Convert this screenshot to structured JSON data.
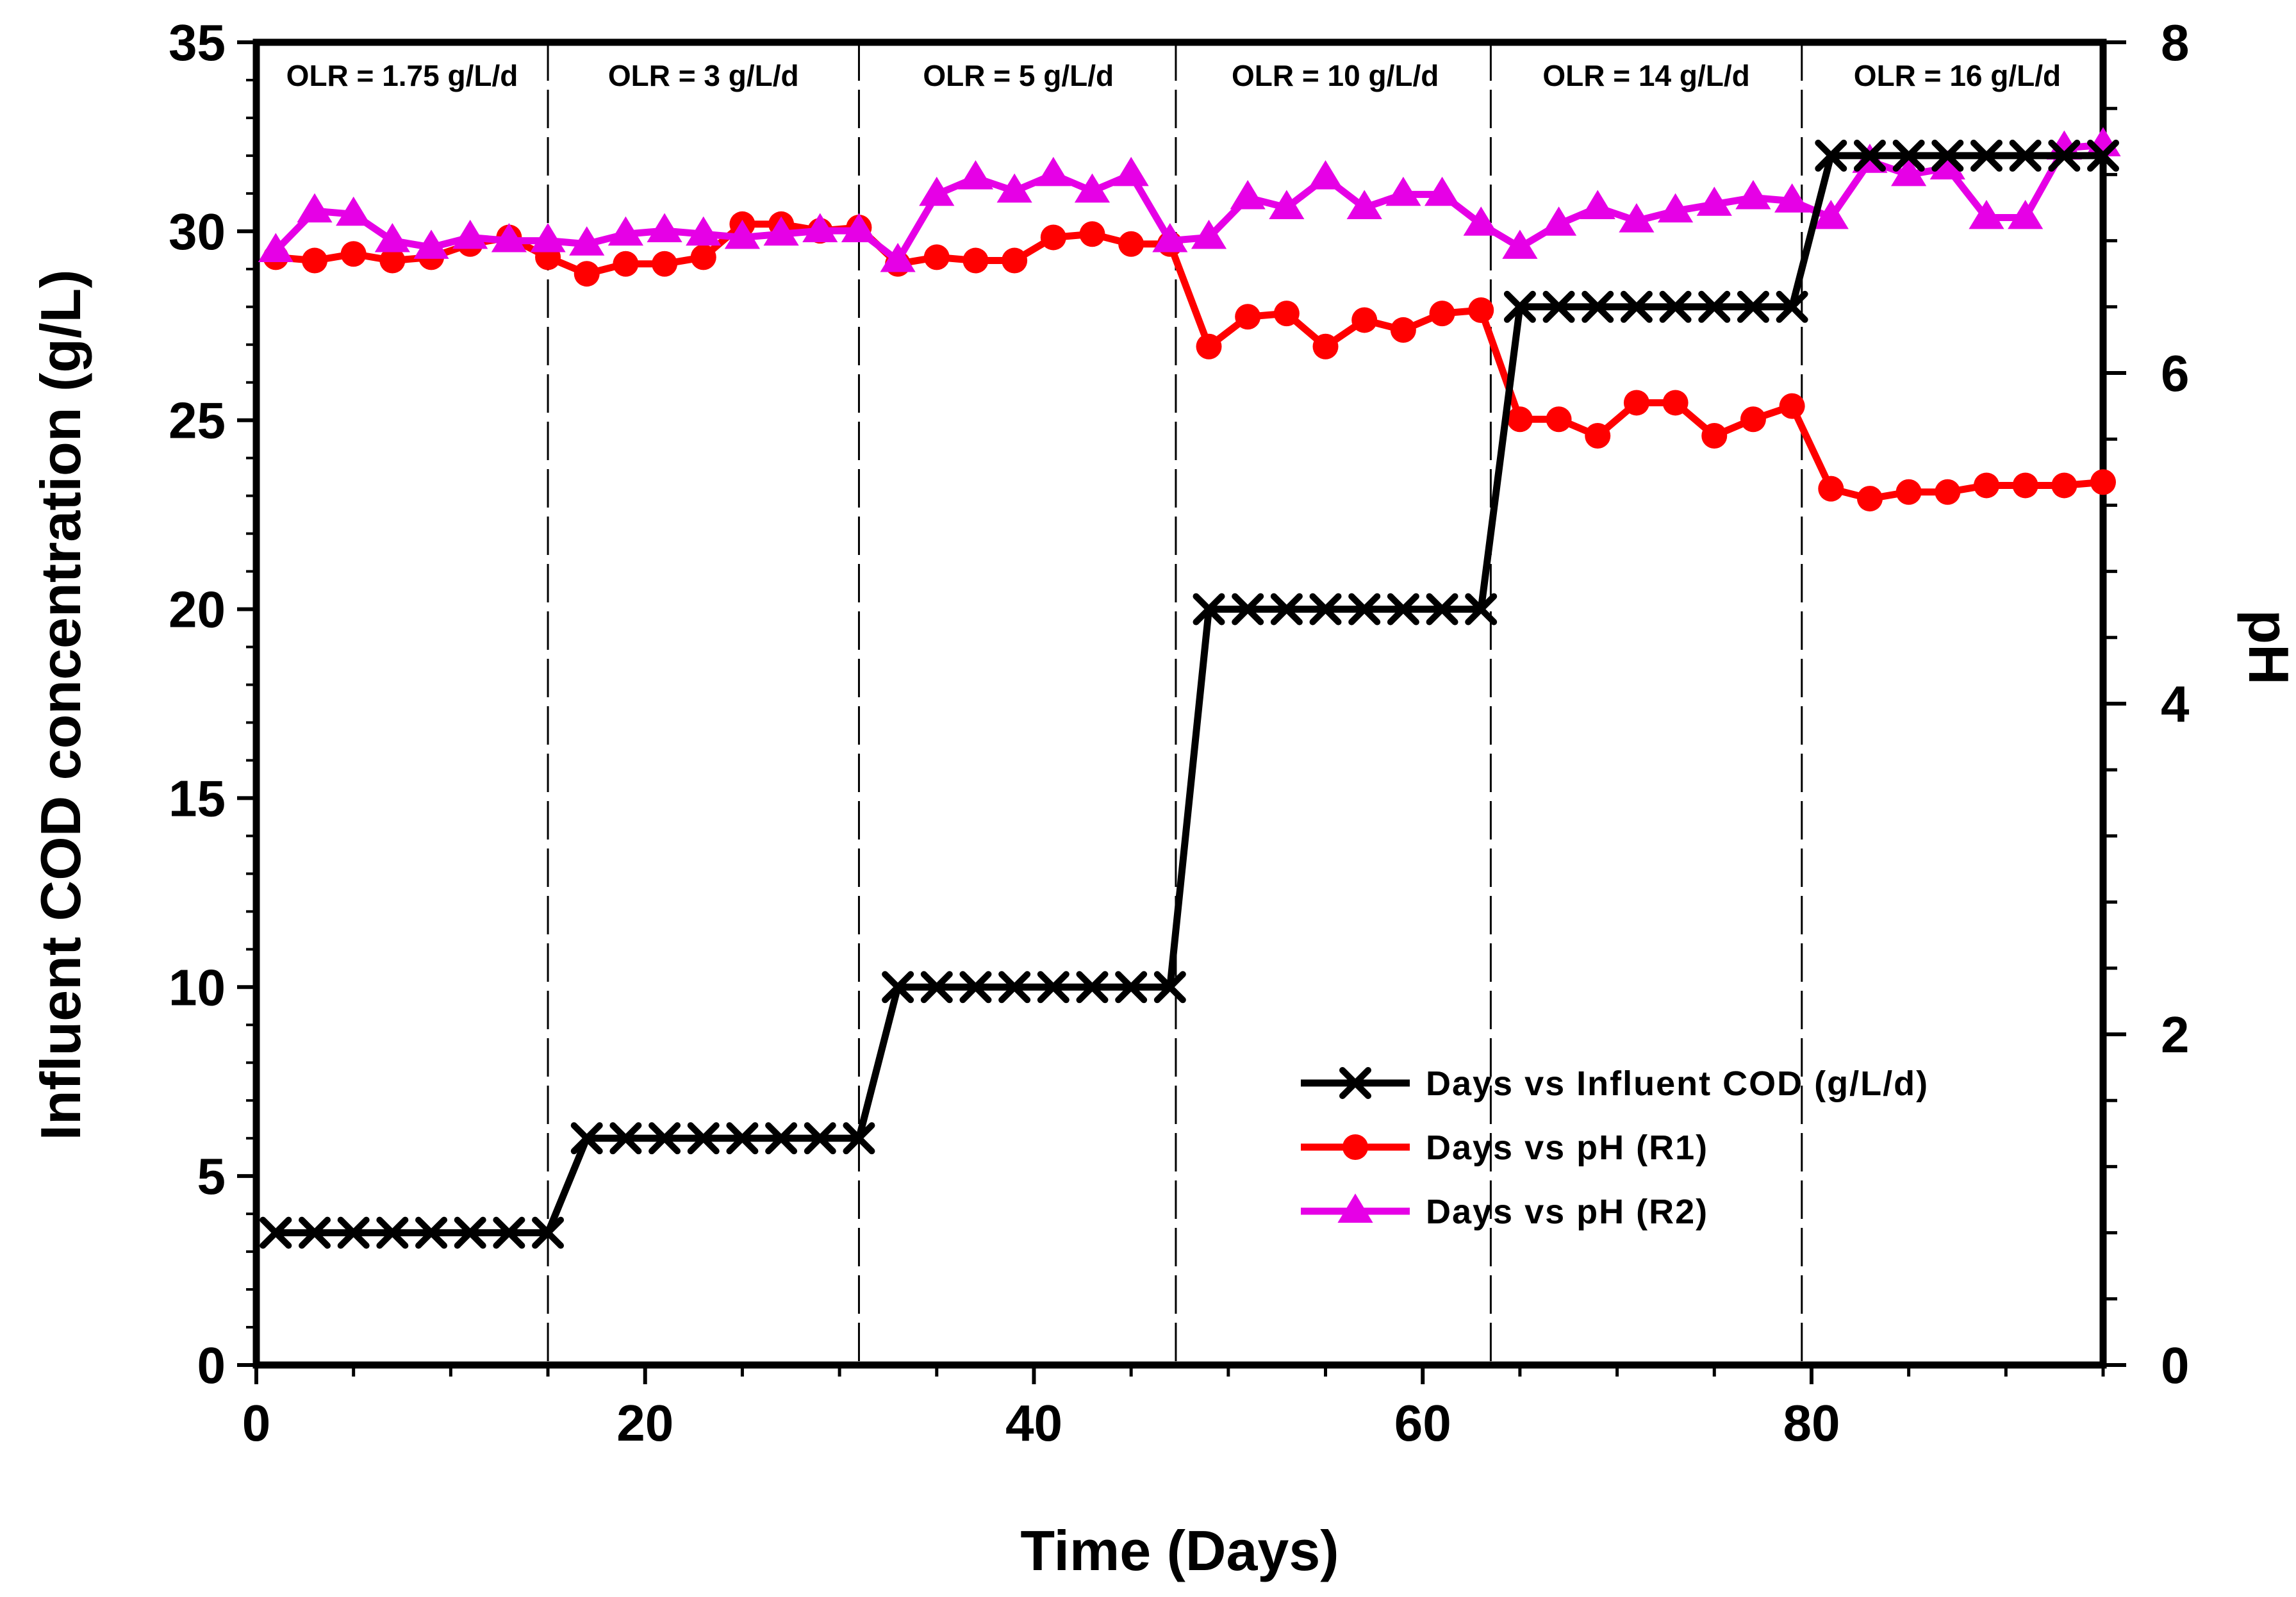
{
  "chart_data": {
    "type": "line",
    "title": "",
    "xlabel": "Time (Days)",
    "ylabel": "Influent COD concentration (g/L)",
    "y2label": "pH",
    "xlim": [
      0,
      95
    ],
    "ylim": [
      0,
      35
    ],
    "y2lim": [
      0,
      8
    ],
    "xticks": [
      "0",
      "20",
      "40",
      "60",
      "80"
    ],
    "yticks": [
      "0",
      "5",
      "10",
      "15",
      "20",
      "25",
      "30",
      "35"
    ],
    "y2ticks": [
      "0",
      "2",
      "4",
      "6",
      "8"
    ],
    "phase_boundaries": [
      15,
      31,
      47.3,
      63.5,
      79.5
    ],
    "phase_labels": [
      {
        "text": "OLR = 1.75 g/L/d",
        "x_center": 7.5
      },
      {
        "text": "OLR = 3 g/L/d",
        "x_center": 23
      },
      {
        "text": "OLR = 5 g/L/d",
        "x_center": 39.2
      },
      {
        "text": "OLR = 10 g/L/d",
        "x_center": 55.5
      },
      {
        "text": "OLR = 14 g/L/d",
        "x_center": 71.5
      },
      {
        "text": "OLR = 16 g/L/d",
        "x_center": 87.5
      }
    ],
    "legend_position": "lower-right",
    "series": [
      {
        "name": "Days vs Influent COD (g/L/d)",
        "axis": "left",
        "color": "#000000",
        "marker": "x",
        "x": [
          1,
          3,
          5,
          7,
          9,
          11,
          13,
          15,
          17,
          19,
          21,
          23,
          25,
          27,
          29,
          31,
          33,
          35,
          37,
          39,
          41,
          43,
          45,
          47,
          49,
          51,
          53,
          55,
          57,
          59,
          61,
          63,
          65,
          67,
          69,
          71,
          73,
          75,
          77,
          79,
          81,
          83,
          85,
          87,
          89,
          91,
          93,
          95
        ],
        "values": [
          3.5,
          3.5,
          3.5,
          3.5,
          3.5,
          3.5,
          3.5,
          3.5,
          6,
          6,
          6,
          6,
          6,
          6,
          6,
          6,
          10,
          10,
          10,
          10,
          10,
          10,
          10,
          10,
          20,
          20,
          20,
          20,
          20,
          20,
          20,
          20,
          28,
          28,
          28,
          28,
          28,
          28,
          28,
          28,
          32,
          32,
          32,
          32,
          32,
          32,
          32,
          32
        ]
      },
      {
        "name": "Days vs pH (R1)",
        "axis": "right",
        "color": "#ff0000",
        "marker": "circle",
        "x": [
          1,
          3,
          5,
          7,
          9,
          11,
          13,
          15,
          17,
          19,
          21,
          23,
          25,
          27,
          29,
          31,
          33,
          35,
          37,
          39,
          41,
          43,
          45,
          47,
          49,
          51,
          53,
          55,
          57,
          59,
          61,
          63,
          65,
          67,
          69,
          71,
          73,
          75,
          77,
          79,
          81,
          83,
          85,
          87,
          89,
          91,
          93,
          95
        ],
        "values": [
          6.7,
          6.68,
          6.72,
          6.68,
          6.7,
          6.78,
          6.82,
          6.7,
          6.6,
          6.66,
          6.66,
          6.7,
          6.9,
          6.9,
          6.86,
          6.88,
          6.66,
          6.7,
          6.68,
          6.68,
          6.82,
          6.84,
          6.78,
          6.78,
          6.16,
          6.34,
          6.36,
          6.16,
          6.32,
          6.26,
          6.36,
          6.38,
          5.72,
          5.72,
          5.62,
          5.82,
          5.82,
          5.62,
          5.72,
          5.8,
          5.3,
          5.24,
          5.28,
          5.28,
          5.32,
          5.32,
          5.32,
          5.34
        ]
      },
      {
        "name": "Days vs pH (R2)",
        "axis": "right",
        "color": "#e600e6",
        "marker": "triangle",
        "x": [
          1,
          3,
          5,
          7,
          9,
          11,
          13,
          15,
          17,
          19,
          21,
          23,
          25,
          27,
          29,
          31,
          33,
          35,
          37,
          39,
          41,
          43,
          45,
          47,
          49,
          51,
          53,
          55,
          57,
          59,
          61,
          63,
          65,
          67,
          69,
          71,
          73,
          75,
          77,
          79,
          81,
          83,
          85,
          87,
          89,
          91,
          93,
          95
        ],
        "values": [
          6.74,
          6.98,
          6.96,
          6.8,
          6.76,
          6.82,
          6.8,
          6.8,
          6.78,
          6.84,
          6.86,
          6.84,
          6.82,
          6.84,
          6.86,
          6.86,
          6.68,
          7.08,
          7.18,
          7.1,
          7.2,
          7.1,
          7.2,
          6.8,
          6.82,
          7.06,
          7.0,
          7.18,
          7.0,
          7.08,
          7.08,
          6.9,
          6.76,
          6.9,
          7.0,
          6.92,
          6.98,
          7.02,
          7.06,
          7.04,
          6.94,
          7.28,
          7.2,
          7.24,
          6.94,
          6.94,
          7.36,
          7.38
        ]
      }
    ]
  }
}
